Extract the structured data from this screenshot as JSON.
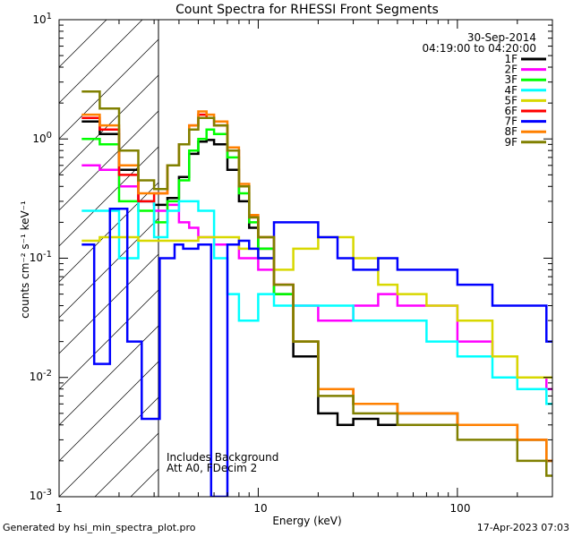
{
  "chart_data": {
    "type": "line",
    "title": "Count Spectra for RHESSI Front Segments",
    "xlabel": "Energy (keV)",
    "ylabel": "counts cm⁻² s⁻¹ keV⁻¹",
    "xscale": "log",
    "yscale": "log",
    "xlim": [
      1,
      300
    ],
    "ylim": [
      0.001,
      10
    ],
    "date": "30-Sep-2014",
    "time_range": "04:19:00 to 04:20:00",
    "legend_position": "top-right",
    "annotations": [
      "Includes Background",
      "Att A0, FDecim 2"
    ],
    "x_tick_labels": [
      "1",
      "10",
      "100"
    ],
    "series": [
      {
        "name": "1F",
        "color": "#000000",
        "points": [
          [
            1.3,
            1.4
          ],
          [
            1.6,
            1.1
          ],
          [
            2,
            0.55
          ],
          [
            2.5,
            0.3
          ],
          [
            3,
            0.28
          ],
          [
            3.5,
            0.32
          ],
          [
            4,
            0.48
          ],
          [
            4.5,
            0.75
          ],
          [
            5,
            0.95
          ],
          [
            5.5,
            0.98
          ],
          [
            6,
            0.9
          ],
          [
            7,
            0.55
          ],
          [
            8,
            0.3
          ],
          [
            9,
            0.18
          ],
          [
            10,
            0.12
          ],
          [
            12,
            0.05
          ],
          [
            15,
            0.015
          ],
          [
            20,
            0.005
          ],
          [
            25,
            0.004
          ],
          [
            30,
            0.0045
          ],
          [
            40,
            0.004
          ],
          [
            50,
            0.005
          ],
          [
            70,
            0.005
          ],
          [
            100,
            0.004
          ],
          [
            150,
            0.004
          ],
          [
            200,
            0.003
          ],
          [
            280,
            0.002
          ]
        ]
      },
      {
        "name": "2F",
        "color": "#ff00ff",
        "points": [
          [
            1.3,
            0.6
          ],
          [
            1.6,
            0.55
          ],
          [
            2,
            0.4
          ],
          [
            2.5,
            0.3
          ],
          [
            3,
            0.25
          ],
          [
            3.5,
            0.28
          ],
          [
            4,
            0.2
          ],
          [
            4.5,
            0.18
          ],
          [
            5,
            0.15
          ],
          [
            6,
            0.13
          ],
          [
            8,
            0.1
          ],
          [
            10,
            0.08
          ],
          [
            12,
            0.06
          ],
          [
            15,
            0.04
          ],
          [
            20,
            0.03
          ],
          [
            30,
            0.04
          ],
          [
            40,
            0.05
          ],
          [
            50,
            0.04
          ],
          [
            70,
            0.04
          ],
          [
            100,
            0.02
          ],
          [
            150,
            0.015
          ],
          [
            200,
            0.01
          ],
          [
            280,
            0.008
          ]
        ]
      },
      {
        "name": "3F",
        "color": "#00ff00",
        "points": [
          [
            1.3,
            1.0
          ],
          [
            1.6,
            0.9
          ],
          [
            2,
            0.3
          ],
          [
            2.5,
            0.25
          ],
          [
            3,
            0.2
          ],
          [
            3.5,
            0.3
          ],
          [
            4,
            0.45
          ],
          [
            4.5,
            0.8
          ],
          [
            5,
            1.0
          ],
          [
            5.5,
            1.2
          ],
          [
            6,
            1.1
          ],
          [
            7,
            0.7
          ],
          [
            8,
            0.35
          ],
          [
            9,
            0.2
          ],
          [
            10,
            0.12
          ],
          [
            12,
            0.05
          ],
          [
            15,
            0.02
          ],
          [
            20,
            0.008
          ],
          [
            30,
            0.006
          ],
          [
            50,
            0.005
          ],
          [
            70,
            0.005
          ],
          [
            100,
            0.004
          ],
          [
            150,
            0.004
          ],
          [
            200,
            0.003
          ],
          [
            280,
            0.002
          ]
        ]
      },
      {
        "name": "4F",
        "color": "#00ffff",
        "points": [
          [
            1.3,
            0.25
          ],
          [
            1.6,
            0.25
          ],
          [
            2,
            0.1
          ],
          [
            2.5,
            0.3
          ],
          [
            3,
            0.15
          ],
          [
            3.5,
            0.25
          ],
          [
            4,
            0.3
          ],
          [
            5,
            0.25
          ],
          [
            6,
            0.1
          ],
          [
            7,
            0.05
          ],
          [
            8,
            0.03
          ],
          [
            10,
            0.05
          ],
          [
            12,
            0.04
          ],
          [
            15,
            0.04
          ],
          [
            20,
            0.04
          ],
          [
            30,
            0.03
          ],
          [
            40,
            0.03
          ],
          [
            50,
            0.03
          ],
          [
            70,
            0.02
          ],
          [
            100,
            0.015
          ],
          [
            150,
            0.01
          ],
          [
            200,
            0.008
          ],
          [
            280,
            0.006
          ]
        ]
      },
      {
        "name": "5F",
        "color": "#d8d800",
        "points": [
          [
            1.3,
            0.14
          ],
          [
            1.6,
            0.15
          ],
          [
            2,
            0.15
          ],
          [
            2.5,
            0.14
          ],
          [
            3,
            0.14
          ],
          [
            4,
            0.14
          ],
          [
            5,
            0.15
          ],
          [
            6,
            0.15
          ],
          [
            8,
            0.12
          ],
          [
            10,
            0.1
          ],
          [
            12,
            0.08
          ],
          [
            15,
            0.12
          ],
          [
            20,
            0.15
          ],
          [
            30,
            0.1
          ],
          [
            40,
            0.06
          ],
          [
            50,
            0.05
          ],
          [
            70,
            0.04
          ],
          [
            100,
            0.03
          ],
          [
            150,
            0.015
          ],
          [
            200,
            0.01
          ],
          [
            280,
            0.01
          ]
        ]
      },
      {
        "name": "6F",
        "color": "#ff0000",
        "points": [
          [
            1.3,
            1.5
          ],
          [
            1.6,
            1.2
          ],
          [
            2,
            0.5
          ],
          [
            2.5,
            0.3
          ],
          [
            3,
            0.35
          ],
          [
            3.5,
            0.6
          ],
          [
            4,
            0.9
          ],
          [
            4.5,
            1.3
          ],
          [
            5,
            1.6
          ],
          [
            5.5,
            1.5
          ],
          [
            6,
            1.3
          ],
          [
            7,
            0.8
          ],
          [
            8,
            0.4
          ],
          [
            9,
            0.22
          ],
          [
            10,
            0.15
          ],
          [
            12,
            0.06
          ],
          [
            15,
            0.02
          ],
          [
            20,
            0.008
          ],
          [
            30,
            0.006
          ],
          [
            50,
            0.005
          ],
          [
            70,
            0.005
          ],
          [
            100,
            0.004
          ],
          [
            150,
            0.004
          ],
          [
            200,
            0.003
          ],
          [
            280,
            0.002
          ]
        ]
      },
      {
        "name": "7F",
        "color": "#0000ff",
        "points": [
          [
            1.3,
            0.13
          ],
          [
            1.5,
            0.013
          ],
          [
            1.8,
            0.26
          ],
          [
            2.2,
            0.02
          ],
          [
            2.6,
            0.0045
          ],
          [
            3.2,
            0.1
          ],
          [
            3.8,
            0.13
          ],
          [
            4.2,
            0.12
          ],
          [
            5,
            0.13
          ],
          [
            5.8,
            0.001
          ],
          [
            7,
            0.13
          ],
          [
            8,
            0.14
          ],
          [
            9,
            0.12
          ],
          [
            10,
            0.1
          ],
          [
            12,
            0.2
          ],
          [
            15,
            0.2
          ],
          [
            20,
            0.15
          ],
          [
            25,
            0.1
          ],
          [
            30,
            0.08
          ],
          [
            40,
            0.1
          ],
          [
            50,
            0.08
          ],
          [
            70,
            0.08
          ],
          [
            100,
            0.06
          ],
          [
            150,
            0.04
          ],
          [
            200,
            0.04
          ],
          [
            280,
            0.02
          ]
        ]
      },
      {
        "name": "8F",
        "color": "#ff8000",
        "points": [
          [
            1.3,
            1.6
          ],
          [
            1.6,
            1.3
          ],
          [
            2,
            0.6
          ],
          [
            2.5,
            0.35
          ],
          [
            3,
            0.35
          ],
          [
            3.5,
            0.6
          ],
          [
            4,
            0.9
          ],
          [
            4.5,
            1.3
          ],
          [
            5,
            1.7
          ],
          [
            5.5,
            1.6
          ],
          [
            6,
            1.4
          ],
          [
            7,
            0.85
          ],
          [
            8,
            0.42
          ],
          [
            9,
            0.23
          ],
          [
            10,
            0.15
          ],
          [
            12,
            0.06
          ],
          [
            15,
            0.02
          ],
          [
            20,
            0.008
          ],
          [
            30,
            0.006
          ],
          [
            50,
            0.005
          ],
          [
            70,
            0.005
          ],
          [
            100,
            0.004
          ],
          [
            150,
            0.004
          ],
          [
            200,
            0.003
          ],
          [
            280,
            0.002
          ]
        ]
      },
      {
        "name": "9F",
        "color": "#808000",
        "points": [
          [
            1.3,
            2.5
          ],
          [
            1.6,
            1.8
          ],
          [
            2,
            0.8
          ],
          [
            2.5,
            0.45
          ],
          [
            3,
            0.38
          ],
          [
            3.5,
            0.6
          ],
          [
            4,
            0.9
          ],
          [
            4.5,
            1.2
          ],
          [
            5,
            1.5
          ],
          [
            5.5,
            1.5
          ],
          [
            6,
            1.3
          ],
          [
            7,
            0.8
          ],
          [
            8,
            0.4
          ],
          [
            9,
            0.22
          ],
          [
            10,
            0.15
          ],
          [
            12,
            0.06
          ],
          [
            15,
            0.02
          ],
          [
            20,
            0.007
          ],
          [
            30,
            0.005
          ],
          [
            50,
            0.004
          ],
          [
            70,
            0.004
          ],
          [
            100,
            0.003
          ],
          [
            150,
            0.003
          ],
          [
            200,
            0.002
          ],
          [
            280,
            0.0015
          ]
        ]
      }
    ]
  },
  "footer": {
    "generated_by": "Generated by hsi_min_spectra_plot.pro",
    "timestamp": "17-Apr-2023 07:03"
  }
}
